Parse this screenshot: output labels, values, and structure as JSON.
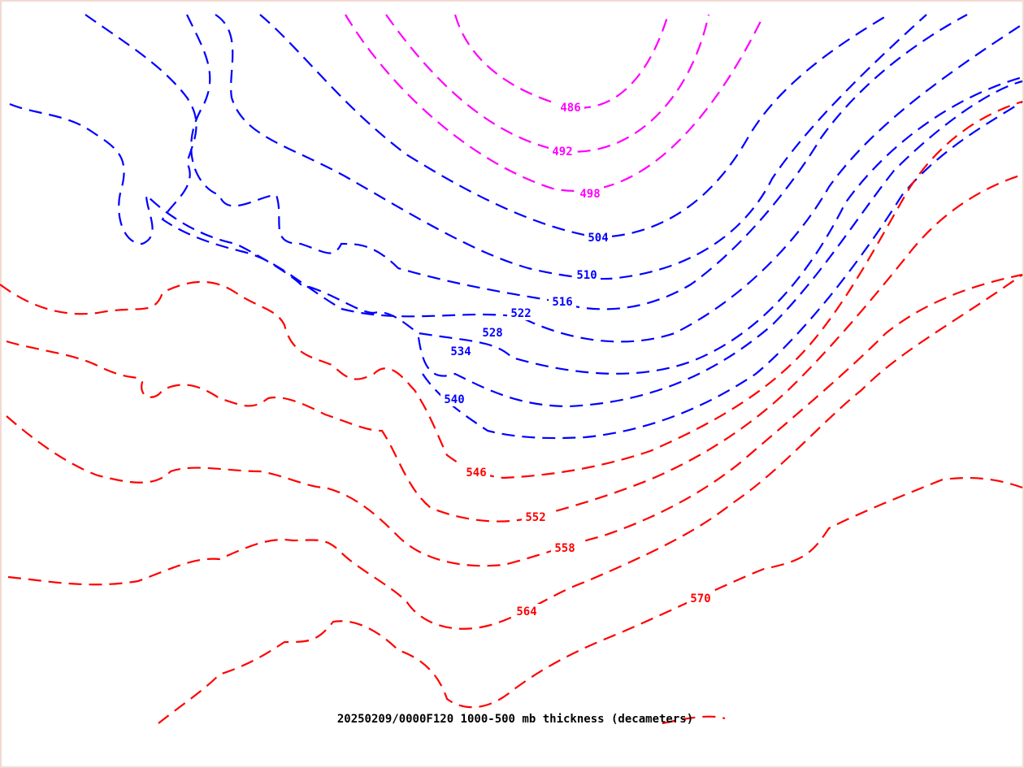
{
  "caption": "20250209/0000F120 1000-500 mb thickness (decameters)",
  "colors": {
    "cold": "#ff00ff",
    "mid": "#0000ff",
    "warm": "#ff0000"
  },
  "contours": [
    {
      "value": "486",
      "color_key": "cold"
    },
    {
      "value": "492",
      "color_key": "cold"
    },
    {
      "value": "498",
      "color_key": "cold"
    },
    {
      "value": "504",
      "color_key": "mid"
    },
    {
      "value": "510",
      "color_key": "mid"
    },
    {
      "value": "516",
      "color_key": "mid"
    },
    {
      "value": "522",
      "color_key": "mid"
    },
    {
      "value": "528",
      "color_key": "mid"
    },
    {
      "value": "534",
      "color_key": "mid"
    },
    {
      "value": "540",
      "color_key": "mid"
    },
    {
      "value": "546",
      "color_key": "warm"
    },
    {
      "value": "552",
      "color_key": "warm"
    },
    {
      "value": "558",
      "color_key": "warm"
    },
    {
      "value": "564",
      "color_key": "warm"
    },
    {
      "value": "570",
      "color_key": "warm"
    }
  ]
}
